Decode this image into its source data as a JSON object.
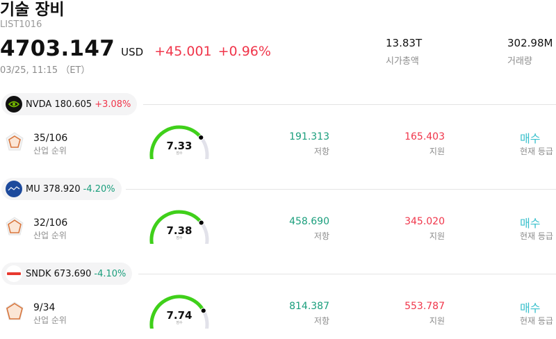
{
  "header": {
    "title": "기술 장비",
    "code": "LIST1016",
    "price": "4703.147",
    "currency": "USD",
    "change": "+45.001",
    "change_pct": "+0.96%",
    "timestamp": "03/25, 11:15 （ET）",
    "market_cap": {
      "value": "13.83T",
      "label": "시가총액"
    },
    "volume": {
      "value": "302.98M",
      "label": "거래량"
    }
  },
  "colors": {
    "up": "#f0354a",
    "down": "#1a9e7c",
    "rating": "#38c0cc",
    "gauge": "#3fd01a"
  },
  "stocks": [
    {
      "logo": "nvidia-logo-icon",
      "ticker": "NVDA",
      "price": "180.605",
      "change": "+3.08%",
      "direction": "up",
      "rank": "35/106",
      "rank_label": "산업 순위",
      "score": "7.33",
      "score_fraction": 0.733,
      "score_label": "점수",
      "resistance": "191.313",
      "resistance_label": "저항",
      "support": "165.403",
      "support_label": "지원",
      "rating": "매수",
      "rating_label": "현재 등급"
    },
    {
      "logo": "micron-logo-icon",
      "ticker": "MU",
      "price": "378.920",
      "change": "-4.20%",
      "direction": "down",
      "rank": "32/106",
      "rank_label": "산업 순위",
      "score": "7.38",
      "score_fraction": 0.738,
      "score_label": "점수",
      "resistance": "458.690",
      "resistance_label": "저항",
      "support": "345.020",
      "support_label": "지원",
      "rating": "매수",
      "rating_label": "현재 등급"
    },
    {
      "logo": "sandisk-logo-icon",
      "ticker": "SNDK",
      "price": "673.690",
      "change": "-4.10%",
      "direction": "down",
      "rank": "9/34",
      "rank_label": "산업 순위",
      "score": "7.74",
      "score_fraction": 0.774,
      "score_label": "점수",
      "resistance": "814.387",
      "resistance_label": "저항",
      "support": "553.787",
      "support_label": "지원",
      "rating": "매수",
      "rating_label": "현재 등급"
    }
  ]
}
